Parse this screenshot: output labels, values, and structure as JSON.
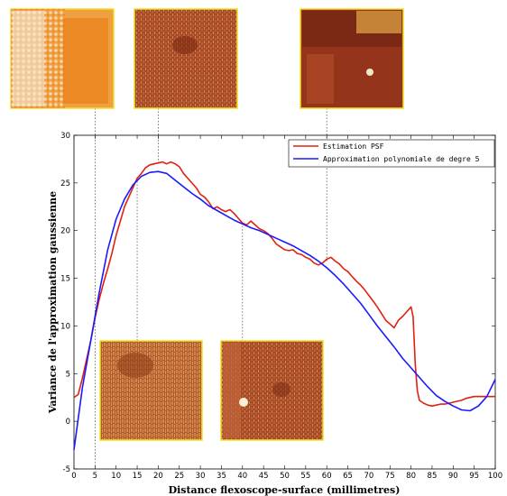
{
  "chart_data": {
    "type": "line",
    "xlabel": "Distance flexoscope-surface (millimetres)",
    "ylabel": "Variance de l'approximation gaussienne",
    "xlim": [
      0,
      100
    ],
    "ylim": [
      -5,
      30
    ],
    "xticks": [
      0,
      5,
      10,
      15,
      20,
      25,
      30,
      35,
      40,
      45,
      50,
      55,
      60,
      65,
      70,
      75,
      80,
      85,
      90,
      95,
      100
    ],
    "yticks": [
      -5,
      0,
      5,
      10,
      15,
      20,
      25,
      30
    ],
    "grid": false,
    "legend_position": "top-right",
    "series": [
      {
        "name": "Estimation PSF",
        "color": "#e02010",
        "x": [
          0,
          1,
          2,
          3,
          4,
          5,
          6,
          7,
          8,
          9,
          10,
          11,
          12,
          13,
          14,
          15,
          16,
          17,
          18,
          19,
          20,
          21,
          22,
          23,
          24,
          25,
          26,
          27,
          28,
          29,
          30,
          31,
          32,
          33,
          34,
          35,
          36,
          37,
          38,
          39,
          40,
          41,
          42,
          43,
          44,
          45,
          46,
          47,
          48,
          49,
          50,
          51,
          52,
          53,
          54,
          55,
          56,
          57,
          58,
          59,
          60,
          61,
          62,
          63,
          64,
          65,
          66,
          67,
          68,
          69,
          70,
          71,
          72,
          73,
          74,
          75,
          76,
          77,
          78,
          79,
          80,
          80.5,
          81,
          81.5,
          82,
          83,
          84,
          85,
          86,
          87,
          88,
          89,
          90,
          91,
          92,
          93,
          94,
          95,
          96,
          97,
          98,
          99,
          100
        ],
        "values": [
          2.5,
          2.8,
          4.5,
          6.5,
          8.5,
          10.8,
          12.8,
          14.5,
          16.0,
          17.6,
          19.5,
          21.0,
          22.5,
          23.5,
          24.5,
          25.5,
          26.0,
          26.6,
          26.9,
          27.0,
          27.1,
          27.2,
          27.0,
          27.2,
          27.0,
          26.7,
          26.0,
          25.5,
          25.0,
          24.5,
          23.8,
          23.5,
          23.0,
          22.3,
          22.5,
          22.2,
          22.0,
          22.2,
          21.8,
          21.3,
          20.8,
          20.6,
          21.0,
          20.6,
          20.2,
          20.0,
          19.7,
          19.2,
          18.6,
          18.3,
          18.0,
          17.9,
          18.0,
          17.6,
          17.5,
          17.2,
          17.0,
          16.6,
          16.4,
          16.6,
          17.0,
          17.2,
          16.8,
          16.5,
          16.0,
          15.7,
          15.2,
          14.7,
          14.3,
          13.8,
          13.2,
          12.6,
          12.0,
          11.3,
          10.6,
          10.2,
          9.8,
          10.6,
          11.0,
          11.5,
          12.0,
          11.0,
          6.0,
          3.2,
          2.2,
          1.9,
          1.7,
          1.6,
          1.7,
          1.8,
          1.8,
          1.9,
          2.0,
          2.1,
          2.2,
          2.4,
          2.5,
          2.6,
          2.6,
          2.6,
          2.6,
          2.6,
          2.6
        ]
      },
      {
        "name": "Approximation polynomiale de degre 5",
        "color": "#1a1aff",
        "x": [
          0,
          2,
          4,
          6,
          8,
          10,
          12,
          14,
          16,
          18,
          20,
          22,
          24,
          26,
          28,
          30,
          32,
          34,
          36,
          38,
          40,
          42,
          44,
          46,
          48,
          50,
          52,
          54,
          56,
          58,
          60,
          62,
          64,
          66,
          68,
          70,
          72,
          74,
          76,
          78,
          80,
          82,
          84,
          86,
          88,
          90,
          92,
          94,
          96,
          98,
          100
        ],
        "values": [
          -3.0,
          3.5,
          8.5,
          13.5,
          18.0,
          21.2,
          23.3,
          24.8,
          25.7,
          26.1,
          26.2,
          26.0,
          25.3,
          24.6,
          23.9,
          23.3,
          22.6,
          22.1,
          21.6,
          21.1,
          20.7,
          20.3,
          20.0,
          19.6,
          19.2,
          18.8,
          18.4,
          17.9,
          17.4,
          16.8,
          16.1,
          15.3,
          14.4,
          13.4,
          12.4,
          11.2,
          10.0,
          8.9,
          7.8,
          6.6,
          5.6,
          4.6,
          3.6,
          2.7,
          2.1,
          1.6,
          1.2,
          1.1,
          1.6,
          2.6,
          4.4
        ]
      }
    ]
  },
  "insets": [
    {
      "id": "inset-top-1",
      "at_x": 5,
      "fill": [
        "#f3cf96",
        "#f0a040",
        "#e8801a",
        "#fbeee0"
      ]
    },
    {
      "id": "inset-top-2",
      "at_x": 20,
      "fill": [
        "#a84a25",
        "#c66a3a",
        "#8a3418",
        "#d98b55"
      ]
    },
    {
      "id": "inset-top-3",
      "at_x": 60,
      "fill": [
        "#94341a",
        "#b04a2a",
        "#6a2212",
        "#d79a40"
      ]
    },
    {
      "id": "inset-bottom-1",
      "at_x": 15,
      "fill": [
        "#b45a28",
        "#d08a48",
        "#8c3a18",
        "#e8b878"
      ]
    },
    {
      "id": "inset-bottom-2",
      "at_x": 40,
      "fill": [
        "#a84624",
        "#c0643a",
        "#7a2a14",
        "#e0a070"
      ]
    }
  ]
}
